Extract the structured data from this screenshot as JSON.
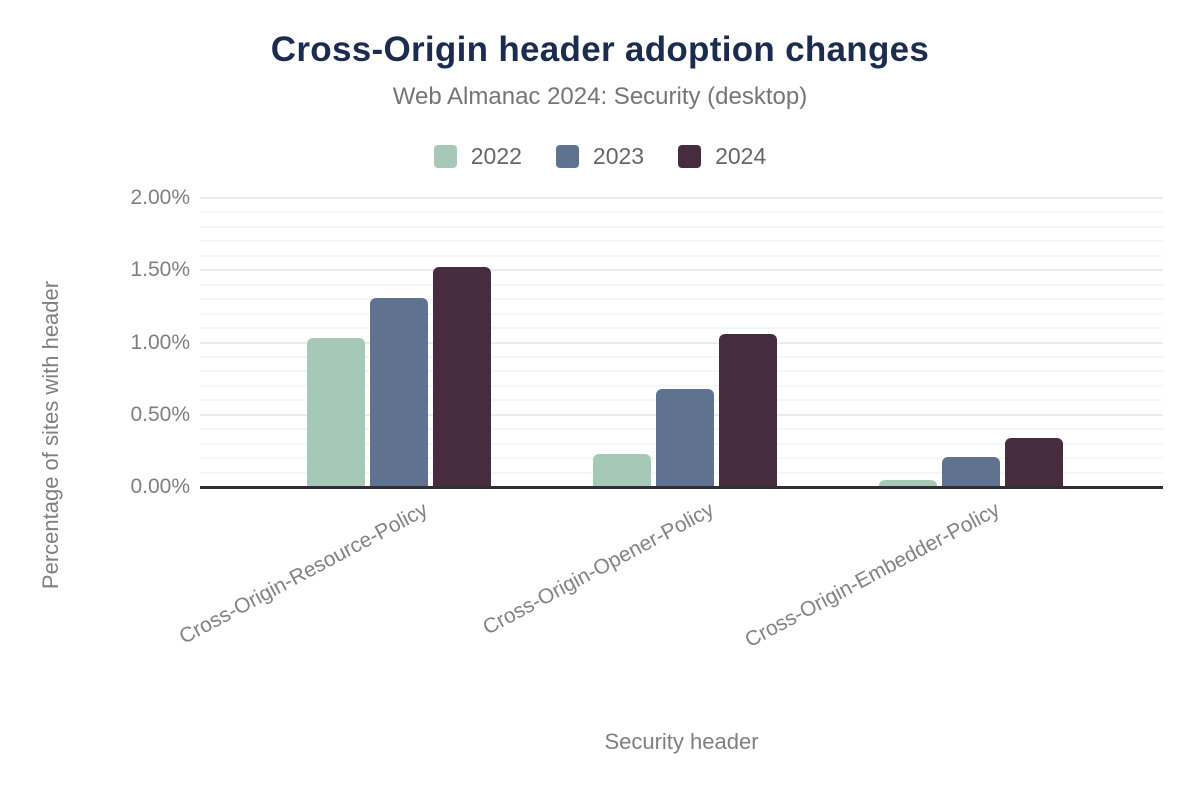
{
  "chart_data": {
    "type": "bar",
    "title": "Cross-Origin header adoption changes",
    "subtitle": "Web Almanac 2024: Security (desktop)",
    "xlabel": "Security header",
    "ylabel": "Percentage of sites with header",
    "categories": [
      "Cross-Origin-Resource-Policy",
      "Cross-Origin-Opener-Policy",
      "Cross-Origin-Embedder-Policy"
    ],
    "series": [
      {
        "name": "2022",
        "color": "#a6c9b7",
        "values": [
          1.03,
          0.23,
          0.05
        ]
      },
      {
        "name": "2023",
        "color": "#5f7290",
        "values": [
          1.31,
          0.68,
          0.21
        ]
      },
      {
        "name": "2024",
        "color": "#462c3e",
        "values": [
          1.52,
          1.06,
          0.34
        ]
      }
    ],
    "ylim": [
      0,
      2.0
    ],
    "ytick_values": [
      0,
      0.5,
      1.0,
      1.5,
      2.0
    ],
    "ytick_labels": [
      "0.00%",
      "0.50%",
      "1.00%",
      "1.50%",
      "2.00%"
    ],
    "minor_grid_step_percent": 0.1,
    "grid": "horizontal",
    "legend_position": "top",
    "value_format": "percent"
  },
  "colors": {
    "title": "#1c2c50",
    "subtitle": "#757575",
    "axis_text": "#7f7f7f",
    "legend_text": "#666666",
    "axis_line": "#2f2f35",
    "grid_major": "#ebebeb",
    "grid_minor": "#f6f6f6",
    "background": "#ffffff"
  }
}
